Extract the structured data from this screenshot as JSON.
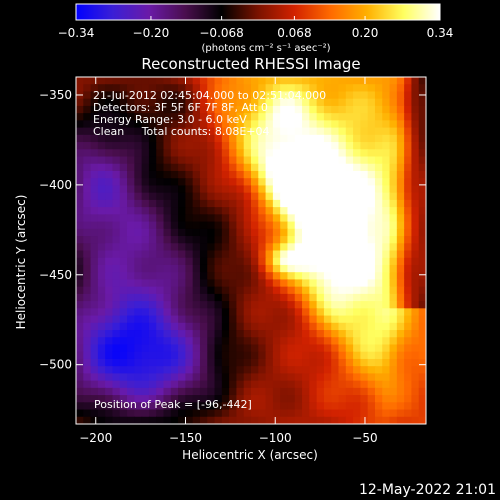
{
  "colorbar": {
    "min": -0.34,
    "max": 0.34,
    "ticks": [
      "-0.34",
      "-0.20",
      "-0.068",
      "0.068",
      "0.20",
      "0.34"
    ],
    "tick_values": [
      -0.34,
      -0.2,
      -0.068,
      0.068,
      0.2,
      0.34
    ],
    "unit_label": "(photons cm⁻² s⁻¹ asec⁻²)",
    "colors": [
      "#0000ff",
      "#3a1fd6",
      "#6a1aa8",
      "#4a0e4e",
      "#000000",
      "#7a1200",
      "#d22200",
      "#ff6a00",
      "#ffb000",
      "#ffff60",
      "#ffffff"
    ]
  },
  "chart_data": {
    "type": "heatmap",
    "title": "Reconstructed RHESSI Image",
    "xlabel": "Heliocentric X (arcsec)",
    "ylabel": "Heliocentric Y (arcsec)",
    "xlim": [
      -211,
      -16
    ],
    "ylim": [
      -533,
      -340
    ],
    "xticks": [
      -200,
      -150,
      -100,
      -50
    ],
    "xtick_labels": [
      "−200",
      "−150",
      "−100",
      "−50"
    ],
    "yticks": [
      -350,
      -400,
      -450,
      -500
    ],
    "ytick_labels": [
      "−350",
      "−400",
      "−450",
      "−500"
    ],
    "peak": {
      "x": -96,
      "y": -442
    },
    "info_lines": [
      "21-Jul-2012 02:45:04.000 to 02:51:04.000",
      "Detectors: 3F 5F 6F 7F 8F, Att 0",
      "Energy Range: 3.0 - 6.0 keV",
      "Clean     Total counts: 8.08E+04"
    ],
    "peak_label": "Position of Peak = [-96,-442]"
  },
  "footer": {
    "timestamp": "12-May-2022 21:01"
  }
}
